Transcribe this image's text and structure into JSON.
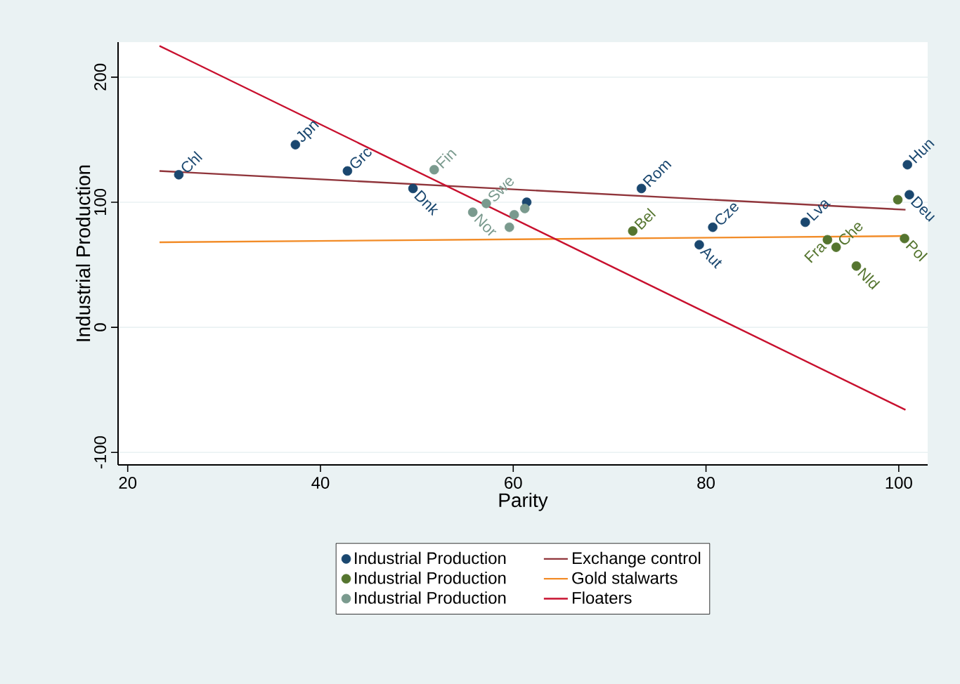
{
  "chart_data": {
    "type": "scatter",
    "xlabel": "Parity",
    "ylabel": "Industrial Production",
    "xlim": [
      19,
      103
    ],
    "ylim": [
      -110,
      228
    ],
    "xticks": [
      20,
      40,
      60,
      80,
      100
    ],
    "yticks": [
      -100,
      0,
      100,
      200
    ],
    "grid": "y",
    "legend": "bottom",
    "series": [
      {
        "name": "Industrial Production",
        "marker": "circle",
        "color": "#1a476f",
        "x": [
          25.3,
          37.4,
          42.8,
          49.6,
          61.4,
          73.3,
          79.3,
          80.7,
          90.3,
          100.9,
          101.1
        ],
        "values": [
          122,
          146,
          125,
          111,
          100,
          111,
          66,
          80,
          84,
          130,
          106
        ]
      },
      {
        "name": "Exchange control",
        "type": "line",
        "color": "#90353b",
        "x": [
          23.3,
          100.7
        ],
        "values": [
          125,
          94
        ]
      },
      {
        "name": "Industrial Production",
        "marker": "circle",
        "color": "#55752f",
        "x": [
          72.4,
          92.6,
          93.5,
          95.6,
          99.9,
          100.6
        ],
        "values": [
          77,
          70,
          64,
          49,
          102,
          71
        ]
      },
      {
        "name": "Gold stalwarts",
        "type": "line",
        "color": "#f28c28",
        "x": [
          23.3,
          100.7
        ],
        "values": [
          68,
          73
        ]
      },
      {
        "name": "Industrial Production",
        "marker": "circle",
        "color": "#7a9a8e",
        "x": [
          51.8,
          55.8,
          57.2,
          59.6,
          60.1,
          61.2
        ],
        "values": [
          126,
          92,
          99,
          80,
          90,
          95
        ]
      },
      {
        "name": "Floaters",
        "type": "line",
        "color": "#c8102e",
        "x": [
          23.3,
          100.7
        ],
        "values": [
          225,
          -66
        ]
      }
    ],
    "annotations": [
      {
        "text": "Chl",
        "x": 25.3,
        "y": 122
      },
      {
        "text": "Jpn",
        "x": 37.4,
        "y": 146
      },
      {
        "text": "Grc",
        "x": 42.8,
        "y": 125
      },
      {
        "text": "Dnk",
        "x": 49.6,
        "y": 111
      },
      {
        "text": "Rom",
        "x": 73.3,
        "y": 111
      },
      {
        "text": "Aut",
        "x": 79.3,
        "y": 66
      },
      {
        "text": "Cze",
        "x": 80.7,
        "y": 80
      },
      {
        "text": "Lva",
        "x": 90.3,
        "y": 84
      },
      {
        "text": "Hun",
        "x": 100.9,
        "y": 130
      },
      {
        "text": "Deu",
        "x": 101.1,
        "y": 106
      },
      {
        "text": "Bel",
        "x": 72.4,
        "y": 77
      },
      {
        "text": "Fra",
        "x": 92.6,
        "y": 70
      },
      {
        "text": "Che",
        "x": 93.5,
        "y": 64
      },
      {
        "text": "Nld",
        "x": 95.6,
        "y": 49
      },
      {
        "text": "Pol",
        "x": 100.6,
        "y": 71
      },
      {
        "text": "Fin",
        "x": 51.8,
        "y": 126
      },
      {
        "text": "Nor",
        "x": 55.8,
        "y": 92
      },
      {
        "text": "Swe",
        "x": 57.2,
        "y": 99
      }
    ]
  }
}
